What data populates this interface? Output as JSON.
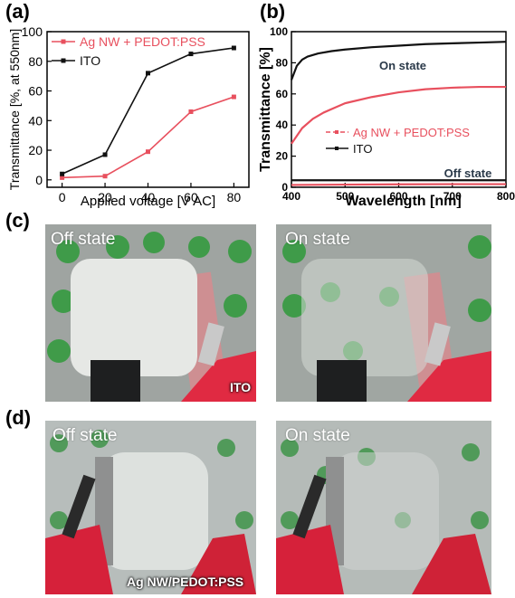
{
  "panels": {
    "a": "(a)",
    "b": "(b)",
    "c": "(c)",
    "d": "(d)"
  },
  "chart_data": [
    {
      "type": "line",
      "xlabel": "Applied voltage [V AC]",
      "ylabel": "Transmittance [%, at 550nm]",
      "x": [
        0,
        20,
        40,
        60,
        80
      ],
      "xticks": [
        "0",
        "20",
        "40",
        "60",
        "80"
      ],
      "yticks": [
        "0",
        "20",
        "40",
        "60",
        "80",
        "100"
      ],
      "xlim": [
        -7,
        87
      ],
      "ylim": [
        -5,
        100
      ],
      "grid": false,
      "legend": "top-left",
      "series": [
        {
          "name": "Ag NW + PEDOT:PSS",
          "color": "#e8505e",
          "values": [
            1.5,
            2.5,
            19,
            46,
            56
          ]
        },
        {
          "name": "ITO",
          "color": "#111111",
          "values": [
            4,
            17,
            72,
            85,
            89
          ]
        }
      ]
    },
    {
      "type": "line",
      "xlabel": "Wavelength [nm]",
      "ylabel": "Transmittance [%]",
      "xticks": [
        "400",
        "500",
        "600",
        "700",
        "800"
      ],
      "yticks": [
        "0",
        "20",
        "40",
        "60",
        "80",
        "100"
      ],
      "xlim": [
        400,
        800
      ],
      "ylim": [
        0,
        100
      ],
      "grid": false,
      "legend": "center-right",
      "annotations": [
        "On state",
        "Off state"
      ],
      "series": [
        {
          "name": "ITO",
          "state": "On state",
          "color": "#111111",
          "x": [
            400,
            410,
            420,
            430,
            450,
            475,
            500,
            550,
            600,
            650,
            700,
            750,
            800
          ],
          "values": [
            69,
            78,
            82,
            84,
            86,
            87.5,
            88.5,
            90,
            91,
            92,
            92.5,
            93,
            93.5
          ]
        },
        {
          "name": "Ag NW + PEDOT:PSS",
          "state": "On state",
          "color": "#e8505e",
          "x": [
            400,
            420,
            440,
            460,
            480,
            500,
            550,
            600,
            650,
            700,
            750,
            800
          ],
          "values": [
            28,
            38,
            44,
            48,
            51,
            54,
            58,
            61,
            63,
            64,
            64.5,
            64.5
          ]
        },
        {
          "name": "ITO",
          "state": "Off state",
          "color": "#111111",
          "x": [
            400,
            500,
            600,
            700,
            800
          ],
          "values": [
            4.5,
            4.5,
            4.5,
            4.5,
            4.5
          ]
        },
        {
          "name": "Ag NW + PEDOT:PSS",
          "state": "Off state",
          "color": "#e8505e",
          "x": [
            400,
            500,
            600,
            700,
            800
          ],
          "values": [
            1.5,
            1.7,
            1.9,
            2,
            2
          ]
        }
      ]
    }
  ],
  "photos": {
    "c_left": {
      "caption": "Off state"
    },
    "c_right": {
      "caption": "On state",
      "tag": "ITO"
    },
    "d_left": {
      "caption": "Off state",
      "tag": "Ag NW/PEDOT:PSS"
    },
    "d_right": {
      "caption": "On state"
    }
  }
}
